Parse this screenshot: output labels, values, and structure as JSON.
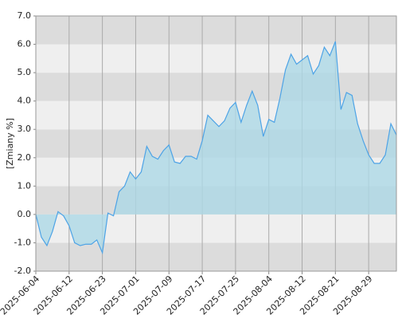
{
  "chart_data": {
    "type": "area",
    "ylabel": "[Zmiany %]",
    "categories": [
      "2025-06-04",
      null,
      null,
      null,
      null,
      null,
      "2025-06-12",
      null,
      null,
      null,
      null,
      null,
      "2025-06-23",
      null,
      null,
      null,
      null,
      null,
      "2025-07-01",
      null,
      null,
      null,
      null,
      null,
      "2025-07-09",
      null,
      null,
      null,
      null,
      null,
      "2025-07-17",
      null,
      null,
      null,
      null,
      null,
      "2025-07-25",
      null,
      null,
      null,
      null,
      null,
      "2025-08-04",
      null,
      null,
      null,
      null,
      null,
      "2025-08-12",
      null,
      null,
      null,
      null,
      null,
      "2025-08-21",
      null,
      null,
      null,
      null,
      null,
      "2025-08-29",
      null,
      null,
      null,
      null,
      null
    ],
    "series": [
      {
        "color": "#4da3e6",
        "fill": "#add8e6",
        "values": [
          0.0,
          -0.8,
          -1.1,
          -0.6,
          0.1,
          -0.05,
          -0.4,
          -1.0,
          -1.1,
          -1.05,
          -1.05,
          -0.9,
          -1.35,
          0.05,
          -0.05,
          0.8,
          1.0,
          1.5,
          1.25,
          1.5,
          2.4,
          2.05,
          1.95,
          2.25,
          2.45,
          1.85,
          1.8,
          2.05,
          2.05,
          1.95,
          2.6,
          3.5,
          3.3,
          3.1,
          3.3,
          3.75,
          3.95,
          3.25,
          3.85,
          4.35,
          3.85,
          2.75,
          3.35,
          3.25,
          4.1,
          5.1,
          5.65,
          5.3,
          5.45,
          5.6,
          4.95,
          5.25,
          5.9,
          5.6,
          6.1,
          3.7,
          4.3,
          4.2,
          3.2,
          2.6,
          2.1,
          1.8,
          1.8,
          2.1,
          3.2,
          2.8
        ]
      }
    ],
    "ylim": [
      -2,
      7
    ],
    "yticks": [
      {
        "value": -2,
        "label": "-2.0"
      },
      {
        "value": -1,
        "label": "-1.0"
      },
      {
        "value": 0,
        "label": "0.0"
      },
      {
        "value": 1,
        "label": "1.0"
      },
      {
        "value": 2,
        "label": "2.0"
      },
      {
        "value": 3,
        "label": "3.0"
      },
      {
        "value": 4,
        "label": "4.0"
      },
      {
        "value": 5,
        "label": "5.0"
      },
      {
        "value": 6,
        "label": "6.0"
      },
      {
        "value": 7,
        "label": "7.0"
      }
    ],
    "bands": [
      "#dcdcdc",
      "#efefef"
    ],
    "grid": true
  }
}
